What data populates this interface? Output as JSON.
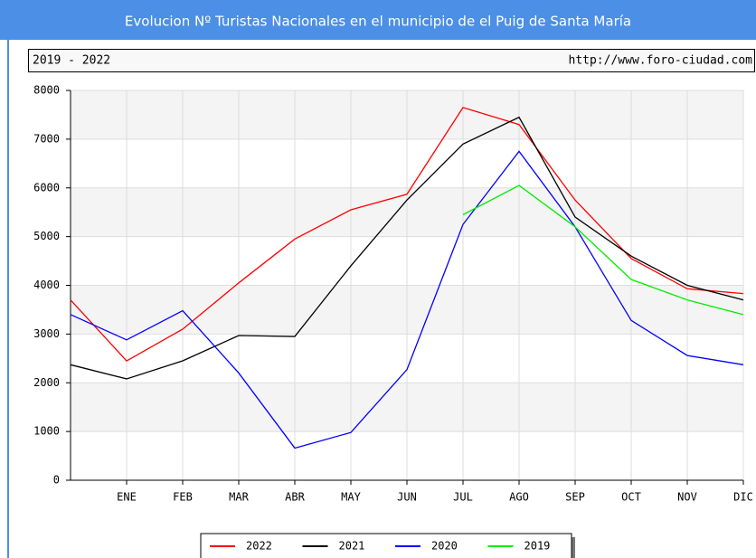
{
  "chart_data": {
    "type": "line",
    "title": "Evolucion Nº Turistas Nacionales en el municipio de el Puig de Santa María",
    "subtitle": "2019 - 2022",
    "source": "http://www.foro-ciudad.com",
    "categories": [
      null,
      "ENE",
      "FEB",
      "MAR",
      "ABR",
      "MAY",
      "JUN",
      "JUL",
      "AGO",
      "SEP",
      "OCT",
      "NOV",
      "DIC"
    ],
    "series": [
      {
        "name": "2022",
        "color": "#ff0000",
        "values": [
          3700,
          2450,
          3100,
          4050,
          4950,
          5550,
          5870,
          7650,
          7300,
          5750,
          4550,
          3930,
          3830
        ]
      },
      {
        "name": "2021",
        "color": "#000000",
        "values": [
          2370,
          2080,
          2450,
          2970,
          2950,
          4400,
          5750,
          6900,
          7450,
          5400,
          4600,
          4000,
          3700
        ]
      },
      {
        "name": "2020",
        "color": "#0000ff",
        "values": [
          3400,
          2880,
          3480,
          2200,
          660,
          980,
          2270,
          5250,
          6750,
          5200,
          3280,
          2560,
          2370
        ]
      },
      {
        "name": "2019",
        "color": "#00ee00",
        "values": [
          null,
          null,
          null,
          null,
          null,
          null,
          null,
          5450,
          6050,
          5200,
          4120,
          3700,
          3400
        ]
      }
    ],
    "ylim": [
      0,
      8000
    ],
    "yticks": [
      0,
      1000,
      2000,
      3000,
      4000,
      5000,
      6000,
      7000,
      8000
    ],
    "grid": true,
    "legend": "bottom"
  }
}
